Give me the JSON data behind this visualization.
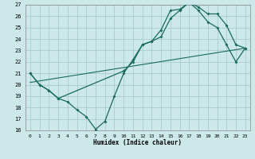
{
  "title": "",
  "xlabel": "Humidex (Indice chaleur)",
  "bg_color": "#cce8e8",
  "grid_color": "#aacccc",
  "line_color": "#1a6b5a",
  "xlim": [
    -0.5,
    23.5
  ],
  "ylim": [
    16,
    27
  ],
  "xticks": [
    0,
    1,
    2,
    3,
    4,
    5,
    6,
    7,
    8,
    9,
    10,
    11,
    12,
    13,
    14,
    15,
    16,
    17,
    18,
    19,
    20,
    21,
    22,
    23
  ],
  "yticks": [
    16,
    17,
    18,
    19,
    20,
    21,
    22,
    23,
    24,
    25,
    26,
    27
  ],
  "line1_x": [
    0,
    1,
    2,
    3,
    4,
    5,
    6,
    7,
    8,
    9,
    10,
    11,
    12,
    13,
    14,
    15,
    16,
    17,
    18,
    19,
    20,
    21,
    22,
    23
  ],
  "line1_y": [
    21.0,
    20.0,
    19.5,
    18.8,
    18.5,
    17.8,
    17.2,
    16.1,
    16.8,
    19.0,
    21.0,
    22.2,
    23.5,
    23.8,
    24.8,
    26.5,
    26.6,
    27.2,
    26.8,
    26.2,
    26.2,
    25.2,
    23.5,
    23.2
  ],
  "line2_x": [
    0,
    1,
    2,
    3,
    10,
    11,
    12,
    13,
    14,
    15,
    16,
    17,
    18,
    19,
    20,
    21,
    22,
    23
  ],
  "line2_y": [
    21.0,
    20.0,
    19.5,
    18.8,
    21.2,
    22.0,
    23.5,
    23.8,
    24.2,
    25.8,
    26.5,
    27.2,
    26.5,
    25.5,
    25.0,
    23.5,
    22.0,
    23.2
  ],
  "line3_x": [
    0,
    23
  ],
  "line3_y": [
    20.2,
    23.2
  ]
}
